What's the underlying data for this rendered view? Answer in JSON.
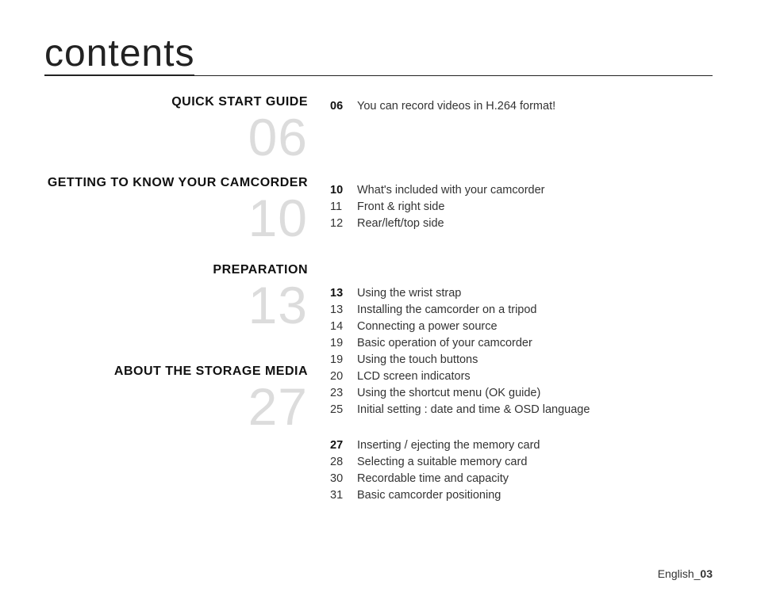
{
  "page": {
    "title": "contents",
    "footer_label": "English",
    "footer_page": "03",
    "background_color": "#ffffff",
    "title_color": "#222222",
    "title_fontsize": 48,
    "bignum_color": "#dcdcdc",
    "bignum_fontsize": 66,
    "text_color": "#333333",
    "heading_color": "#111111"
  },
  "sections": [
    {
      "heading": "QUICK START GUIDE",
      "page_number": "06",
      "entries": [
        {
          "page": "06",
          "text": "You can record videos in H.264 format!"
        }
      ]
    },
    {
      "heading": "GETTING TO KNOW YOUR CAMCORDER",
      "page_number": "10",
      "entries": [
        {
          "page": "10",
          "text": "What's included with your camcorder"
        },
        {
          "page": "11",
          "text": "Front & right side"
        },
        {
          "page": "12",
          "text": "Rear/left/top side"
        }
      ]
    },
    {
      "heading": "PREPARATION",
      "page_number": "13",
      "entries": [
        {
          "page": "13",
          "text": "Using the wrist strap"
        },
        {
          "page": "13",
          "text": "Installing the camcorder on a tripod"
        },
        {
          "page": "14",
          "text": "Connecting a power source"
        },
        {
          "page": "19",
          "text": "Basic operation of your camcorder"
        },
        {
          "page": "19",
          "text": "Using the touch buttons"
        },
        {
          "page": "20",
          "text": "LCD screen indicators"
        },
        {
          "page": "23",
          "text": "Using the shortcut menu (OK guide)"
        },
        {
          "page": "25",
          "text": "Initial setting : date and time & OSD language"
        }
      ]
    },
    {
      "heading": "ABOUT THE STORAGE MEDIA",
      "page_number": "27",
      "entries": [
        {
          "page": "27",
          "text": "Inserting / ejecting the memory card"
        },
        {
          "page": "28",
          "text": "Selecting a suitable memory card"
        },
        {
          "page": "30",
          "text": "Recordable time and capacity"
        },
        {
          "page": "31",
          "text": "Basic camcorder positioning"
        }
      ]
    }
  ]
}
